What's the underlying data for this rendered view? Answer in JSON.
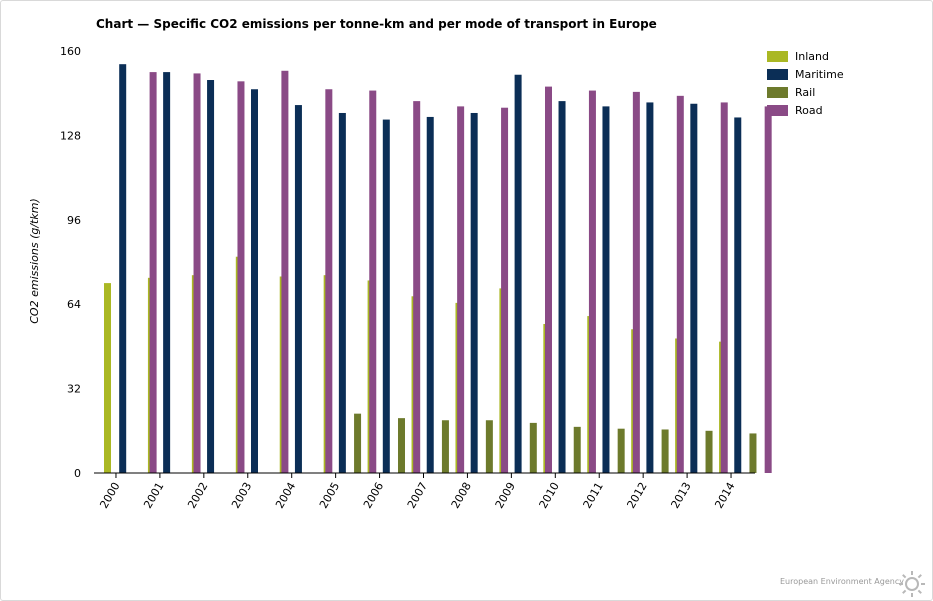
{
  "chart_data": {
    "type": "bar",
    "title": "Chart — Specific CO2 emissions per tonne-km and per mode of transport in Europe",
    "xlabel": "",
    "ylabel": "CO2 emissions (g/tkm)",
    "ylim": [
      0,
      160
    ],
    "yticks": [
      0,
      32,
      64,
      96,
      128,
      160
    ],
    "grid": false,
    "legend_position": "top-right",
    "categories": [
      "2000",
      "2001",
      "2002",
      "2003",
      "2004",
      "2005",
      "2006",
      "2007",
      "2008",
      "2009",
      "2010",
      "2011",
      "2012",
      "2013",
      "2014"
    ],
    "series": [
      {
        "name": "Inland",
        "color": "#aab824",
        "values": [
          72,
          74,
          75,
          82,
          74.5,
          75,
          73,
          67,
          64.5,
          70,
          56.5,
          59.5,
          54.5,
          51,
          49.8
        ]
      },
      {
        "name": "Maritime",
        "color": "#0b2e56",
        "values": [
          155,
          152,
          149,
          145.5,
          139.5,
          136.5,
          134,
          135,
          136.5,
          151,
          141,
          139,
          140.5,
          140,
          134.8
        ]
      },
      {
        "name": "Rail",
        "color": "#6d7a2c",
        "values": [
          null,
          null,
          null,
          null,
          null,
          22.5,
          20.8,
          20,
          20,
          19,
          17.5,
          16.8,
          16.5,
          16,
          15
        ]
      },
      {
        "name": "Road",
        "color": "#8a4a86",
        "values": [
          152,
          151.5,
          148.5,
          152.5,
          145.5,
          145,
          141,
          139,
          138.5,
          146.5,
          145,
          144.5,
          143,
          140.5,
          139
        ]
      }
    ]
  },
  "footer": {
    "credit": "European Environment Agency",
    "logo_icon": "eea-sun-logo-icon"
  }
}
